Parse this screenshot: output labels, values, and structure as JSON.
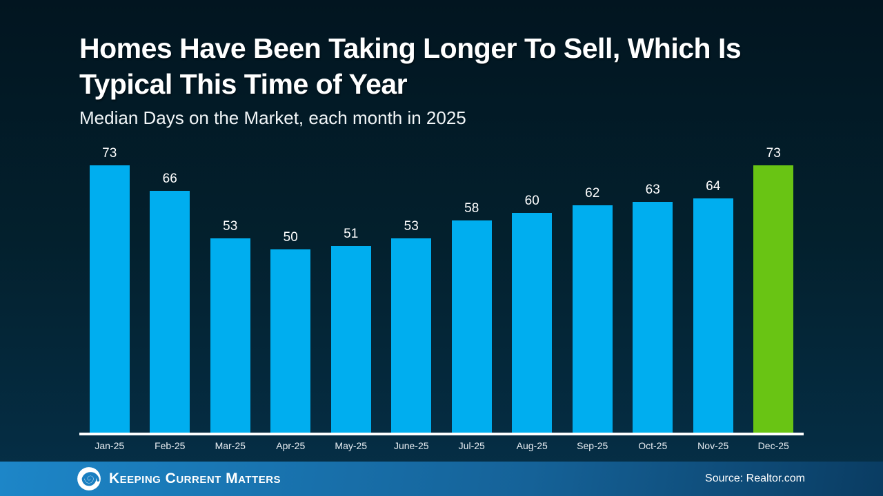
{
  "slide": {
    "title_line1": "Homes Have Been Taking Longer To Sell, Which Is",
    "title_line2": "Typical This Time of Year",
    "subtitle": "Median Days on the Market, each month in 2025"
  },
  "chart_data": {
    "type": "bar",
    "title": "Homes Have Been Taking Longer To Sell, Which Is Typical This Time of Year",
    "subtitle": "Median Days on the Market, each month in 2025",
    "categories": [
      "Jan-25",
      "Feb-25",
      "Mar-25",
      "Apr-25",
      "May-25",
      "June-25",
      "Jul-25",
      "Aug-25",
      "Sep-25",
      "Oct-25",
      "Nov-25",
      "Dec-25"
    ],
    "values": [
      73,
      66,
      53,
      50,
      51,
      53,
      58,
      60,
      62,
      63,
      64,
      73
    ],
    "data_labels": true,
    "grid": false,
    "legend": false,
    "ylim": [
      0,
      73
    ],
    "bar_color": "#00AEEF",
    "highlight_index": 11,
    "highlight_color": "#69C414",
    "axis_line_color": "#FFFFFF",
    "background_top": "#021520",
    "background_bottom": "#063049"
  },
  "footer": {
    "logo_icon": "kcm-swirl-icon",
    "logo_text": "Keeping Current Matters",
    "source": "Source: Realtor.com"
  }
}
